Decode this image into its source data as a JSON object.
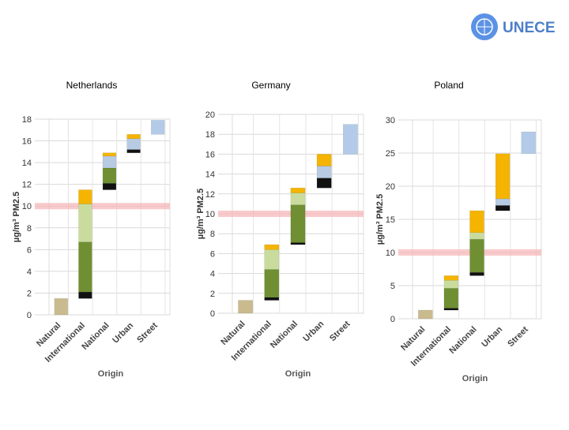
{
  "logo": {
    "text": "UNECE"
  },
  "chart_data": [
    {
      "type": "bar",
      "title": "Netherlands",
      "ylabel": "µg/m³ PM2.5",
      "xlabel": "Origin",
      "categories": [
        "Natural",
        "International",
        "National",
        "Urban",
        "Street"
      ],
      "ylim": [
        0,
        18
      ],
      "yticks": [
        0,
        2,
        4,
        6,
        8,
        10,
        12,
        14,
        16,
        18
      ],
      "grid": true,
      "limit": 10,
      "series": [
        {
          "color": "#c9bb8e",
          "values": [
            1.5,
            null,
            null,
            null,
            null
          ]
        },
        {
          "color": "#111111",
          "values": [
            null,
            0.6,
            0.6,
            0.3,
            null
          ]
        },
        {
          "color": "#6f8f32",
          "values": [
            null,
            4.6,
            1.4,
            null,
            null
          ]
        },
        {
          "color": "#c9dc9e",
          "values": [
            null,
            3.5,
            null,
            null,
            null
          ]
        },
        {
          "color": "#b7cbe3",
          "values": [
            null,
            null,
            1.1,
            1.0,
            null
          ]
        },
        {
          "color": "#f4b400",
          "values": [
            null,
            1.3,
            0.3,
            0.4,
            null
          ]
        },
        {
          "color": "#b3cbe8",
          "values": [
            null,
            null,
            null,
            null,
            1.3
          ]
        }
      ]
    },
    {
      "type": "bar",
      "title": "Germany",
      "ylabel": "µg/m³ PM2.5",
      "xlabel": "Origin",
      "categories": [
        "Natural",
        "International",
        "National",
        "Urban",
        "Street"
      ],
      "ylim": [
        0,
        20
      ],
      "yticks": [
        0,
        2,
        4,
        6,
        8,
        10,
        12,
        14,
        16,
        18,
        20
      ],
      "grid": true,
      "limit": 10,
      "series": [
        {
          "color": "#c9bb8e",
          "values": [
            1.3,
            null,
            null,
            null,
            null
          ]
        },
        {
          "color": "#111111",
          "values": [
            null,
            0.3,
            0.2,
            1.0,
            null
          ]
        },
        {
          "color": "#6f8f32",
          "values": [
            null,
            2.8,
            3.8,
            null,
            null
          ]
        },
        {
          "color": "#c9dc9e",
          "values": [
            null,
            2.0,
            1.2,
            null,
            null
          ]
        },
        {
          "color": "#b7cbe3",
          "values": [
            null,
            null,
            null,
            1.2,
            null
          ]
        },
        {
          "color": "#f4b400",
          "values": [
            null,
            0.5,
            0.5,
            1.2,
            null
          ]
        },
        {
          "color": "#b3cbe8",
          "values": [
            null,
            null,
            null,
            null,
            3.0
          ]
        }
      ]
    },
    {
      "type": "bar",
      "title": "Poland",
      "ylabel": "µg/m³ PM2.5",
      "xlabel": "Origin",
      "categories": [
        "Natural",
        "International",
        "National",
        "Urban",
        "Street"
      ],
      "ylim": [
        0,
        30
      ],
      "yticks": [
        0,
        5,
        10,
        15,
        20,
        25,
        30
      ],
      "grid": true,
      "limit": 10,
      "series": [
        {
          "color": "#c9bb8e",
          "values": [
            1.3,
            null,
            null,
            null,
            null
          ]
        },
        {
          "color": "#111111",
          "values": [
            null,
            0.3,
            0.5,
            0.8,
            null
          ]
        },
        {
          "color": "#6f8f32",
          "values": [
            null,
            3.0,
            5.0,
            null,
            null
          ]
        },
        {
          "color": "#c9dc9e",
          "values": [
            null,
            1.2,
            1.0,
            null,
            null
          ]
        },
        {
          "color": "#b7cbe3",
          "values": [
            null,
            null,
            null,
            1.0,
            null
          ]
        },
        {
          "color": "#f4b400",
          "values": [
            null,
            0.7,
            3.3,
            6.8,
            null
          ]
        },
        {
          "color": "#b3cbe8",
          "values": [
            null,
            null,
            null,
            null,
            3.3
          ]
        }
      ]
    }
  ]
}
